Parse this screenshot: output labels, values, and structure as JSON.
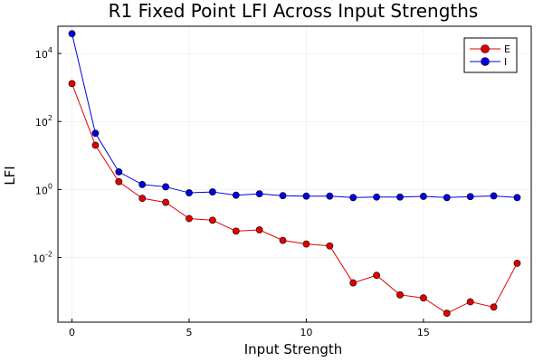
{
  "chart_data": {
    "type": "line",
    "title": "R1 Fixed Point LFI Across Input Strengths",
    "xlabel": "Input Strength",
    "ylabel": "LFI",
    "x": [
      0,
      1,
      2,
      3,
      4,
      5,
      6,
      7,
      8,
      9,
      10,
      11,
      12,
      13,
      14,
      15,
      16,
      17,
      18,
      19
    ],
    "xlim": [
      -0.6,
      19.6
    ],
    "ylim_log10": [
      -3.9,
      4.8
    ],
    "y_scale": "log10",
    "x_ticks": [
      0,
      5,
      10,
      15
    ],
    "x_tick_labels": [
      "0",
      "5",
      "10",
      "15"
    ],
    "y_ticks_exponents": [
      -2,
      0,
      2,
      4
    ],
    "y_tick_base": "10",
    "y_tick_exponent_labels": [
      "-2",
      "0",
      "2",
      "4"
    ],
    "grid": true,
    "legend_position": "top-right",
    "series": [
      {
        "name": "E",
        "color": "#e20000",
        "values": [
          1300,
          20,
          1.7,
          0.55,
          0.42,
          0.14,
          0.125,
          0.06,
          0.065,
          0.032,
          0.025,
          0.022,
          0.0018,
          0.003,
          0.0008,
          0.00065,
          0.00023,
          0.0005,
          0.00035,
          0.0068
        ]
      },
      {
        "name": "I",
        "color": "#0000e2",
        "values": [
          38000,
          45,
          3.3,
          1.4,
          1.2,
          0.8,
          0.85,
          0.68,
          0.75,
          0.66,
          0.64,
          0.64,
          0.58,
          0.6,
          0.6,
          0.63,
          0.58,
          0.62,
          0.65,
          0.58
        ]
      }
    ]
  }
}
